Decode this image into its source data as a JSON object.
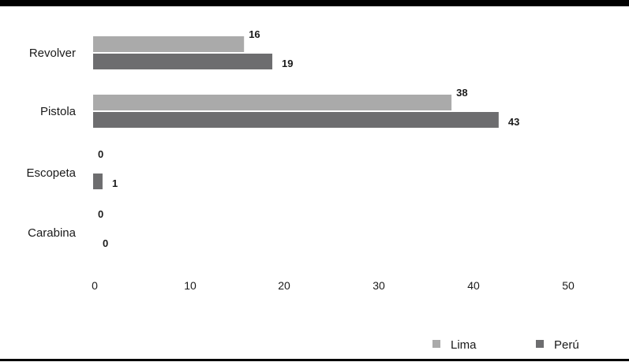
{
  "chart_data": {
    "type": "bar",
    "orientation": "horizontal",
    "categories": [
      "Revolver",
      "Pistola",
      "Escopeta",
      "Carabina"
    ],
    "series": [
      {
        "name": "Lima",
        "values": [
          16,
          38,
          0,
          0
        ],
        "color": "#aaaaaa"
      },
      {
        "name": "Perú",
        "values": [
          19,
          43,
          1,
          0
        ],
        "color": "#6d6d6f"
      }
    ],
    "xlim": [
      0,
      50
    ],
    "x_ticks": [
      "0",
      "10",
      "20",
      "30",
      "40",
      "50"
    ],
    "grid": false,
    "legend_position": "bottom-right",
    "frame_color": "#000000"
  }
}
